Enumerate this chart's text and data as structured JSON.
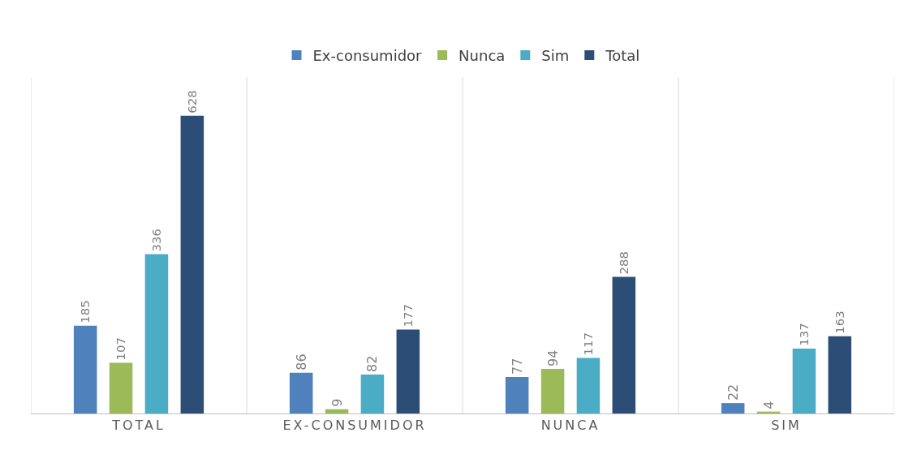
{
  "chart_data": {
    "type": "bar",
    "categories": [
      "TOTAL",
      "EX-CONSUMIDOR",
      "NUNCA",
      "SIM"
    ],
    "series": [
      {
        "name": "Ex-consumidor",
        "color": "#4f81bd",
        "values": [
          185,
          86,
          77,
          22
        ]
      },
      {
        "name": "Nunca",
        "color": "#9bbb59",
        "values": [
          107,
          9,
          94,
          4
        ]
      },
      {
        "name": "Sim",
        "color": "#4bacc6",
        "values": [
          336,
          82,
          117,
          137
        ]
      },
      {
        "name": "Total",
        "color": "#2c4d75",
        "values": [
          628,
          177,
          288,
          163
        ]
      }
    ],
    "data_labels": true,
    "legend": "top",
    "grid": "x"
  }
}
